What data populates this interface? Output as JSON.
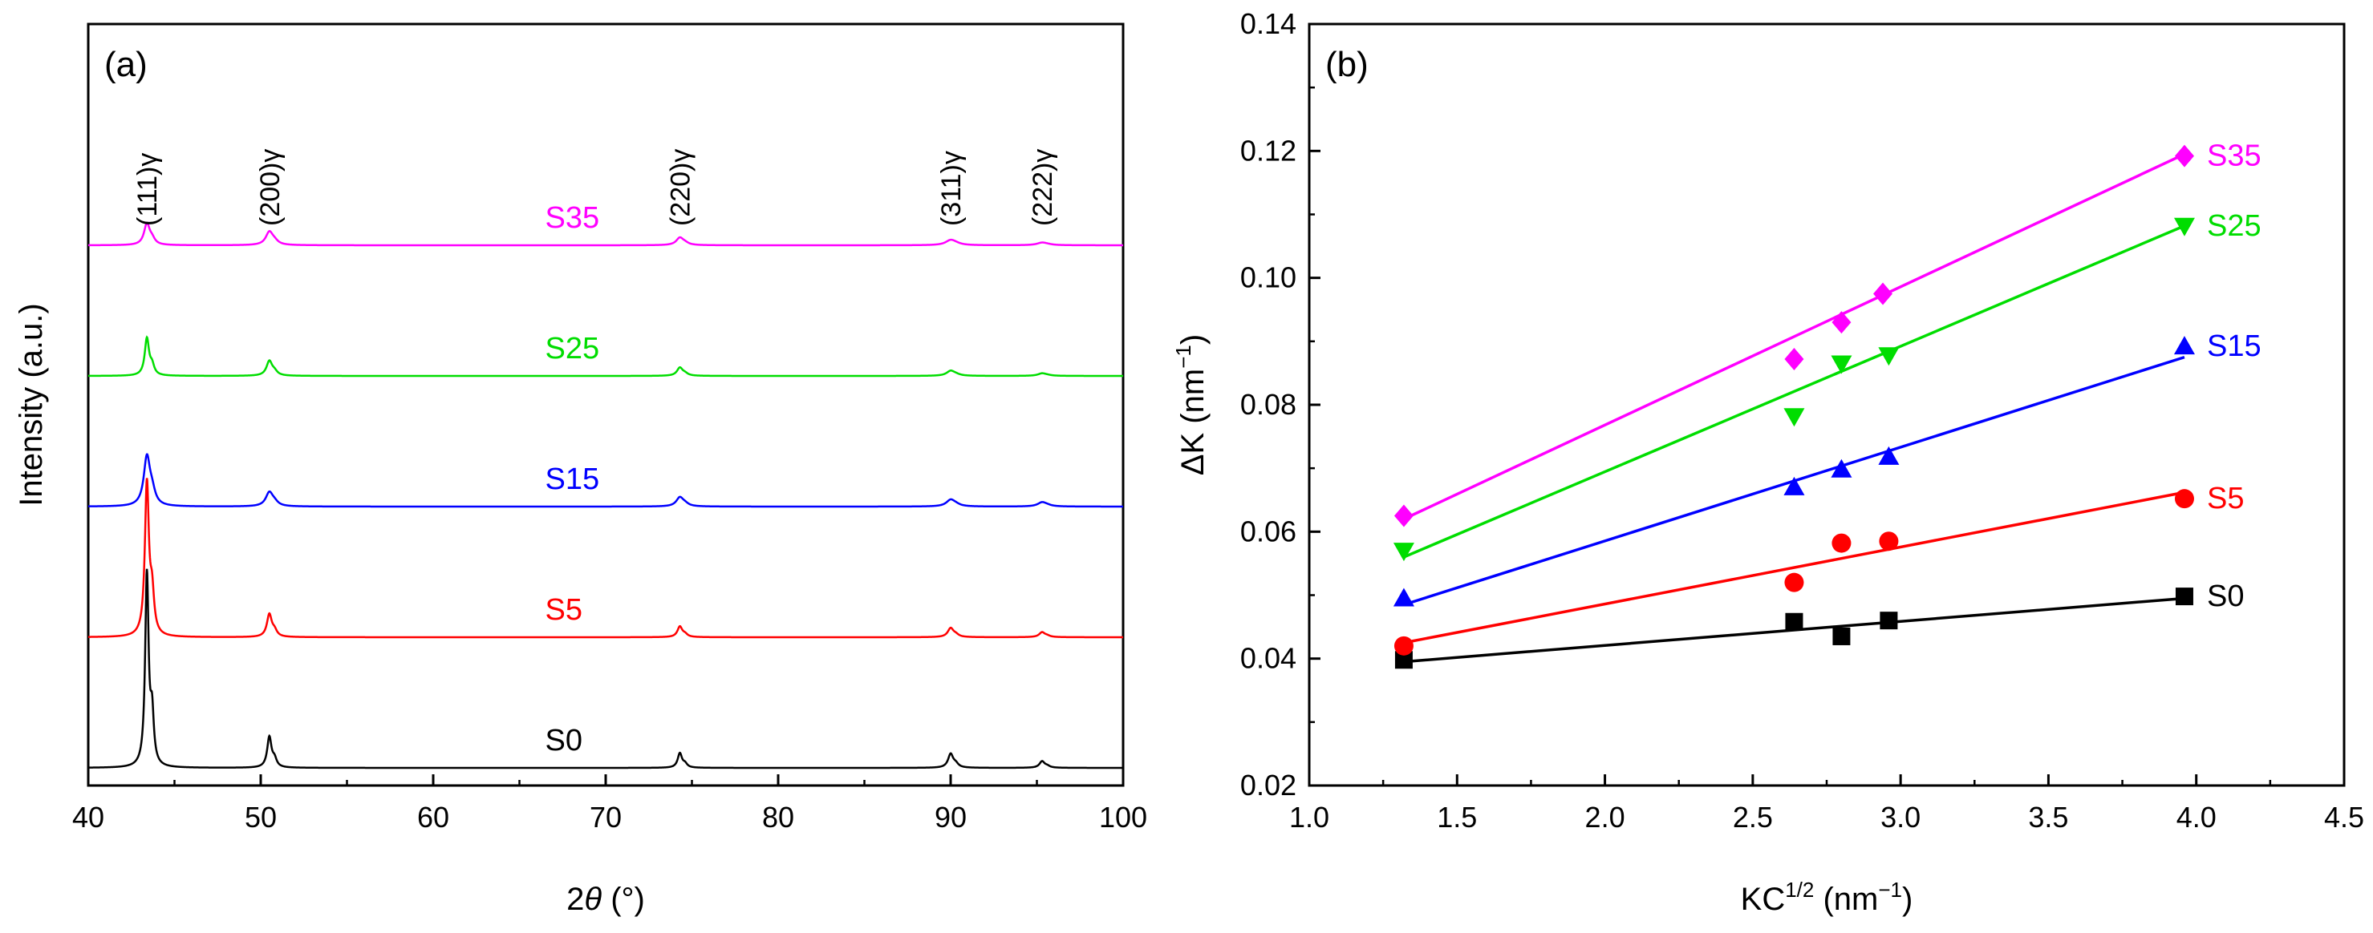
{
  "chart_data": [
    {
      "panel": "(a)",
      "type": "line",
      "xlabel_prefix": "2",
      "xlabel_symbol": "θ",
      "xlabel_unit": " (°)",
      "ylabel": "Intensity (a.u.)",
      "xlim": [
        40,
        100
      ],
      "xticks": [
        "40",
        "50",
        "60",
        "70",
        "80",
        "90",
        "100"
      ],
      "peaks": [
        {
          "label": "(111)γ",
          "position": 43.4
        },
        {
          "label": "(200)γ",
          "position": 50.5
        },
        {
          "label": "(220)γ",
          "position": 74.3
        },
        {
          "label": "(311)γ",
          "position": 90.0
        },
        {
          "label": "(222)γ",
          "position": 95.3
        }
      ],
      "series": [
        {
          "name": "S0",
          "color": "#000000",
          "baseline": 0.0,
          "peak_heights": [
            12.0,
            1.9,
            0.9,
            0.85,
            0.4
          ],
          "peak_widths": [
            0.12,
            0.15,
            0.15,
            0.18,
            0.18
          ],
          "label_x": 73
        },
        {
          "name": "S5",
          "color": "#ff0000",
          "baseline": 1.0,
          "peak_heights": [
            9.5,
            1.4,
            0.65,
            0.55,
            0.3
          ],
          "peak_widths": [
            0.14,
            0.17,
            0.17,
            0.2,
            0.2
          ],
          "label_x": 73
        },
        {
          "name": "S15",
          "color": "#0000ff",
          "baseline": 2.0,
          "peak_heights": [
            3.0,
            0.85,
            0.55,
            0.4,
            0.25
          ],
          "peak_widths": [
            0.22,
            0.25,
            0.25,
            0.3,
            0.3
          ],
          "label_x": 73
        },
        {
          "name": "S25",
          "color": "#00dd00",
          "baseline": 3.0,
          "peak_heights": [
            2.3,
            0.9,
            0.5,
            0.3,
            0.15
          ],
          "peak_widths": [
            0.15,
            0.2,
            0.2,
            0.28,
            0.28
          ],
          "label_x": 73
        },
        {
          "name": "S35",
          "color": "#ff00ff",
          "baseline": 4.0,
          "peak_heights": [
            1.3,
            0.8,
            0.45,
            0.3,
            0.15
          ],
          "peak_widths": [
            0.2,
            0.25,
            0.25,
            0.35,
            0.35
          ],
          "label_x": 73
        }
      ]
    },
    {
      "panel": "(b)",
      "type": "scatter",
      "xlabel": "KC",
      "xlabel_sup": "1/2",
      "xlabel_unit": " (nm",
      "xlabel_unit_sup": "−1",
      "xlabel_end": ")",
      "ylabel": "ΔK (nm",
      "ylabel_sup": "−1",
      "ylabel_end": ")",
      "xlim": [
        1.0,
        4.5
      ],
      "ylim": [
        0.02,
        0.14
      ],
      "xticks": [
        "1.0",
        "1.5",
        "2.0",
        "2.5",
        "3.0",
        "3.5",
        "4.0",
        "4.5"
      ],
      "yticks": [
        "0.02",
        "0.04",
        "0.06",
        "0.08",
        "0.10",
        "0.12",
        "0.14"
      ],
      "series": [
        {
          "name": "S0",
          "color": "#000000",
          "marker": "square",
          "x": [
            1.32,
            2.64,
            2.8,
            2.96,
            3.96
          ],
          "y": [
            0.0398,
            0.0458,
            0.0435,
            0.046,
            0.0498
          ],
          "fit": {
            "x": [
              1.32,
              3.96
            ],
            "y": [
              0.0395,
              0.0495
            ]
          }
        },
        {
          "name": "S5",
          "color": "#ff0000",
          "marker": "circle",
          "x": [
            1.32,
            2.64,
            2.8,
            2.96,
            3.96
          ],
          "y": [
            0.042,
            0.052,
            0.0582,
            0.0585,
            0.0652
          ],
          "fit": {
            "x": [
              1.32,
              3.96
            ],
            "y": [
              0.0425,
              0.0662
            ]
          }
        },
        {
          "name": "S15",
          "color": "#0000ff",
          "marker": "triangle-up",
          "x": [
            1.32,
            2.64,
            2.8,
            2.96,
            3.96
          ],
          "y": [
            0.0495,
            0.067,
            0.0698,
            0.0718,
            0.0892
          ],
          "fit": {
            "x": [
              1.32,
              3.96
            ],
            "y": [
              0.0485,
              0.0875
            ]
          }
        },
        {
          "name": "S25",
          "color": "#00dd00",
          "marker": "triangle-down",
          "x": [
            1.32,
            2.64,
            2.8,
            2.96,
            3.96
          ],
          "y": [
            0.057,
            0.0782,
            0.0865,
            0.0878,
            0.1082
          ],
          "fit": {
            "x": [
              1.32,
              3.96
            ],
            "y": [
              0.056,
              0.1082
            ]
          }
        },
        {
          "name": "S35",
          "color": "#ff00ff",
          "marker": "diamond",
          "x": [
            1.32,
            2.64,
            2.8,
            2.94,
            3.96
          ],
          "y": [
            0.0625,
            0.0872,
            0.093,
            0.0975,
            0.1192
          ],
          "fit": {
            "x": [
              1.32,
              3.96
            ],
            "y": [
              0.062,
              0.1195
            ]
          }
        }
      ]
    }
  ]
}
